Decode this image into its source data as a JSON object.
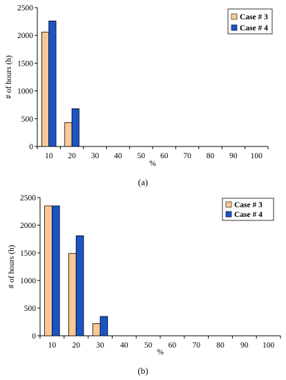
{
  "chart_data": [
    {
      "type": "bar",
      "panel_label": "(a)",
      "categories": [
        "10",
        "20",
        "30",
        "40",
        "50",
        "60",
        "70",
        "80",
        "90",
        "100"
      ],
      "series": [
        {
          "name": "Case # 3",
          "color": "#f9c896",
          "values": [
            2060,
            430,
            0,
            0,
            0,
            0,
            0,
            0,
            0,
            0
          ]
        },
        {
          "name": "Case # 4",
          "color": "#1a55c8",
          "values": [
            2260,
            680,
            0,
            0,
            0,
            0,
            0,
            0,
            0,
            0
          ]
        }
      ],
      "xlabel": "%",
      "ylabel": "# of hours (h)",
      "ylim": [
        0,
        2500
      ],
      "yticks": [
        0,
        500,
        1000,
        1500,
        2000,
        2500
      ],
      "grid": false,
      "legend": "top-right"
    },
    {
      "type": "bar",
      "panel_label": "(b)",
      "categories": [
        "10",
        "20",
        "30",
        "40",
        "50",
        "60",
        "70",
        "80",
        "90",
        "100"
      ],
      "series": [
        {
          "name": "Case # 3",
          "color": "#f9c896",
          "values": [
            2350,
            1490,
            220,
            0,
            0,
            0,
            0,
            0,
            0,
            0
          ]
        },
        {
          "name": "Case # 4",
          "color": "#1a55c8",
          "values": [
            2350,
            1810,
            350,
            0,
            0,
            0,
            0,
            0,
            0,
            0
          ]
        }
      ],
      "xlabel": "%",
      "ylabel": "# of hours (h)",
      "ylim": [
        0,
        2500
      ],
      "yticks": [
        0,
        500,
        1000,
        1500,
        2000,
        2500
      ],
      "grid": false,
      "legend": "top-right"
    }
  ]
}
